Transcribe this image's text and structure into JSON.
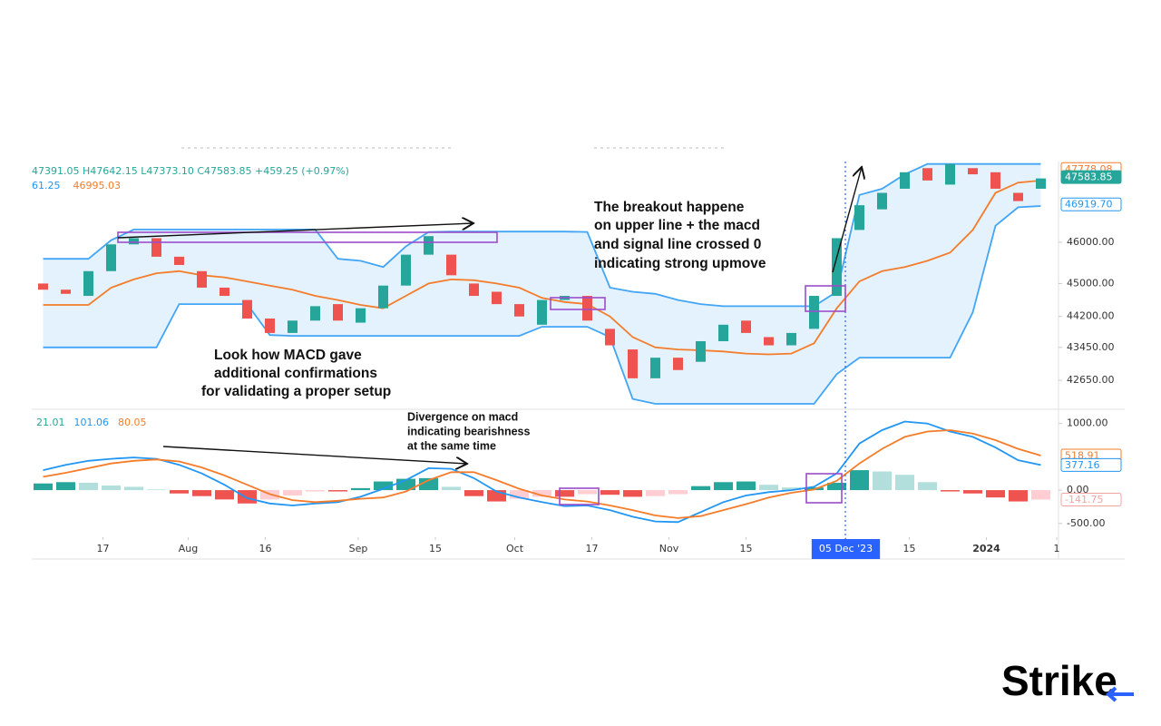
{
  "chart_data": [
    {
      "type": "candlestick",
      "ohlc_readout": "47391.05 H47642.15 L47373.10 C47583.85 +459.25 (+0.97%)",
      "readout": [
        {
          "label": "61.25",
          "color": "#2196f3"
        },
        {
          "label": "46995.03",
          "color": "#f57c2a"
        }
      ],
      "x": [
        0,
        1,
        2,
        3,
        4,
        5,
        6,
        7,
        8,
        9,
        10,
        11,
        12,
        13,
        14,
        15,
        16,
        17,
        18,
        19,
        20,
        21,
        22,
        23,
        24,
        25,
        26,
        27,
        28,
        29,
        30,
        31,
        32,
        33,
        34,
        35,
        36,
        37,
        38,
        39,
        40,
        41,
        42,
        43,
        44
      ],
      "open": [
        45000,
        44850,
        44700,
        45300,
        45950,
        46100,
        45650,
        45300,
        44900,
        44600,
        44150,
        43800,
        44100,
        44500,
        44050,
        44400,
        44950,
        45700,
        45700,
        45000,
        44800,
        44500,
        44000,
        44600,
        44700,
        43900,
        43400,
        42700,
        43200,
        43100,
        43600,
        44100,
        43700,
        43500,
        43900,
        44700,
        46300,
        46800,
        47300,
        47800,
        47400,
        47800,
        47700,
        47200,
        47300
      ],
      "close": [
        44850,
        44750,
        45300,
        45950,
        46100,
        45650,
        45450,
        44900,
        44700,
        44150,
        43800,
        44100,
        44450,
        44100,
        44400,
        44950,
        45700,
        46150,
        45200,
        44700,
        44500,
        44200,
        44600,
        44700,
        44100,
        43500,
        42700,
        43200,
        42900,
        43600,
        44000,
        43800,
        43500,
        43800,
        44700,
        46100,
        46900,
        47200,
        47700,
        47500,
        47900,
        47650,
        47300,
        47000,
        47550
      ],
      "up_color": "#26a69a",
      "down_color": "#ef5350",
      "band_fill": "#e3f2fd",
      "series": [
        {
          "color": "#42a5f5",
          "values": [
            45600,
            45600,
            45600,
            46050,
            46310,
            46310,
            46310,
            46310,
            46310,
            46310,
            46310,
            46310,
            46310,
            45600,
            45550,
            45400,
            45900,
            46250,
            46260,
            46260,
            46260,
            46260,
            46260,
            46260,
            46250,
            44900,
            44800,
            44750,
            44600,
            44500,
            44450,
            44450,
            44450,
            44450,
            44450,
            44800,
            47150,
            47300,
            47650,
            47900,
            47900,
            47900,
            47900,
            47900,
            47900
          ]
        },
        {
          "color": "#42a5f5",
          "values": [
            43450,
            43450,
            43450,
            43450,
            43450,
            43450,
            44500,
            44500,
            44500,
            44500,
            43750,
            43730,
            43730,
            43730,
            43730,
            43730,
            43730,
            43730,
            43730,
            43730,
            43730,
            43730,
            43950,
            43950,
            43950,
            43700,
            42200,
            42080,
            42080,
            42080,
            42080,
            42080,
            42080,
            42080,
            42080,
            42800,
            43200,
            43200,
            43200,
            43200,
            43200,
            44300,
            46400,
            46850,
            46880
          ]
        },
        {
          "color": "#f57c2a",
          "values": [
            44480,
            44480,
            44480,
            44900,
            45100,
            45250,
            45300,
            45200,
            45150,
            45050,
            44950,
            44850,
            44700,
            44600,
            44480,
            44400,
            44700,
            45000,
            45100,
            45080,
            45000,
            44900,
            44650,
            44550,
            44500,
            44200,
            43700,
            43450,
            43400,
            43380,
            43350,
            43300,
            43280,
            43300,
            43550,
            44400,
            45050,
            45300,
            45400,
            45550,
            45750,
            46300,
            47200,
            47450,
            47500
          ]
        }
      ],
      "ylim": [
        41970,
        47960
      ],
      "yticks": [
        {
          "value": 46000,
          "label": "46000.00"
        },
        {
          "value": 45000,
          "label": "45000.00"
        },
        {
          "value": 44200,
          "label": "44200.00"
        },
        {
          "value": 43450,
          "label": "43450.00"
        },
        {
          "value": 42650,
          "label": "42650.00"
        }
      ],
      "badges": [
        {
          "value": 47778.08,
          "label": "47778.08",
          "color": "#f57c2a",
          "filled": false
        },
        {
          "value": 47583.85,
          "label": "47583.85",
          "color": "#26a69a",
          "filled": true
        },
        {
          "value": 46919.7,
          "label": "46919.70",
          "color": "#2196f3",
          "filled": false
        }
      ]
    },
    {
      "type": "macd",
      "readout": [
        {
          "label": "21.01",
          "color": "#26a69a"
        },
        {
          "label": "101.06",
          "color": "#2196f3"
        },
        {
          "label": "80.05",
          "color": "#f57c2a"
        }
      ],
      "x": [
        0,
        1,
        2,
        3,
        4,
        5,
        6,
        7,
        8,
        9,
        10,
        11,
        12,
        13,
        14,
        15,
        16,
        17,
        18,
        19,
        20,
        21,
        22,
        23,
        24,
        25,
        26,
        27,
        28,
        29,
        30,
        31,
        32,
        33,
        34,
        35,
        36,
        37,
        38,
        39,
        40,
        41,
        42,
        43,
        44
      ],
      "histogram": [
        100,
        120,
        110,
        70,
        50,
        10,
        -50,
        -90,
        -140,
        -200,
        -140,
        -80,
        -20,
        -20,
        30,
        130,
        170,
        180,
        50,
        -90,
        -170,
        -130,
        -100,
        -100,
        -60,
        -70,
        -100,
        -90,
        -60,
        60,
        120,
        130,
        80,
        40,
        40,
        110,
        300,
        280,
        230,
        120,
        -20,
        -50,
        -110,
        -170,
        -141.75
      ],
      "histogram_colors": [
        "#26a69a",
        "#b2dfdb",
        "#ffcdd2",
        "#ef5350"
      ],
      "series": [
        {
          "color": "#2196f3",
          "values": [
            300,
            380,
            440,
            470,
            490,
            470,
            380,
            250,
            80,
            -120,
            -200,
            -230,
            -200,
            -180,
            -100,
            20,
            150,
            330,
            320,
            180,
            -20,
            -110,
            -180,
            -240,
            -230,
            -300,
            -400,
            -470,
            -480,
            -330,
            -180,
            -80,
            -30,
            0,
            50,
            250,
            700,
            900,
            1030,
            1000,
            880,
            800,
            640,
            450,
            377.16
          ]
        },
        {
          "color": "#f57c2a",
          "values": [
            200,
            260,
            330,
            400,
            440,
            460,
            430,
            340,
            220,
            80,
            -60,
            -150,
            -180,
            -160,
            -130,
            -110,
            -20,
            150,
            270,
            270,
            150,
            20,
            -80,
            -140,
            -170,
            -230,
            -300,
            -380,
            -420,
            -390,
            -300,
            -210,
            -110,
            -40,
            10,
            140,
            400,
            620,
            800,
            880,
            900,
            850,
            750,
            620,
            518.91
          ]
        }
      ],
      "ylim": [
        -680,
        1200
      ],
      "yticks": [
        {
          "value": 1000,
          "label": "1000.00"
        },
        {
          "value": 0,
          "label": "0.00"
        },
        {
          "value": -500,
          "label": "-500.00"
        }
      ],
      "badges": [
        {
          "value": 518.91,
          "label": "518.91",
          "color": "#f57c2a",
          "filled": false
        },
        {
          "value": 377.16,
          "label": "377.16",
          "color": "#2196f3",
          "filled": false
        },
        {
          "value": -141.75,
          "label": "-141.75",
          "color": "#f4a3a3",
          "filled": false
        }
      ],
      "xlim": [
        -0.5,
        44.7
      ],
      "xticks": [
        {
          "value": 2.64,
          "label": "17"
        },
        {
          "value": 6.4,
          "label": "Aug"
        },
        {
          "value": 9.8,
          "label": "16"
        },
        {
          "value": 13.9,
          "label": "Sep"
        },
        {
          "value": 17.3,
          "label": "15"
        },
        {
          "value": 20.8,
          "label": "Oct"
        },
        {
          "value": 24.2,
          "label": "17"
        },
        {
          "value": 27.6,
          "label": "Nov"
        },
        {
          "value": 31,
          "label": "15"
        },
        {
          "value": 35.4,
          "label": "05 Dec '23",
          "highlight": true
        },
        {
          "value": 38.2,
          "label": "15"
        },
        {
          "value": 41.6,
          "label": "2024",
          "bold": true
        },
        {
          "value": 44.7,
          "label": "1"
        }
      ]
    }
  ],
  "annotations": [
    {
      "lines": [
        "The breakout happene",
        "on upper line + the macd",
        "and signal line crossed 0",
        "indicating strong upmove"
      ]
    },
    {
      "lines": [
        "Look how MACD gave",
        "additional confirmations",
        "for validating a proper setup"
      ]
    },
    {
      "lines": [
        "Divergence on macd",
        "indicating bearishness",
        "at the same time"
      ]
    }
  ],
  "logo": "Strike"
}
